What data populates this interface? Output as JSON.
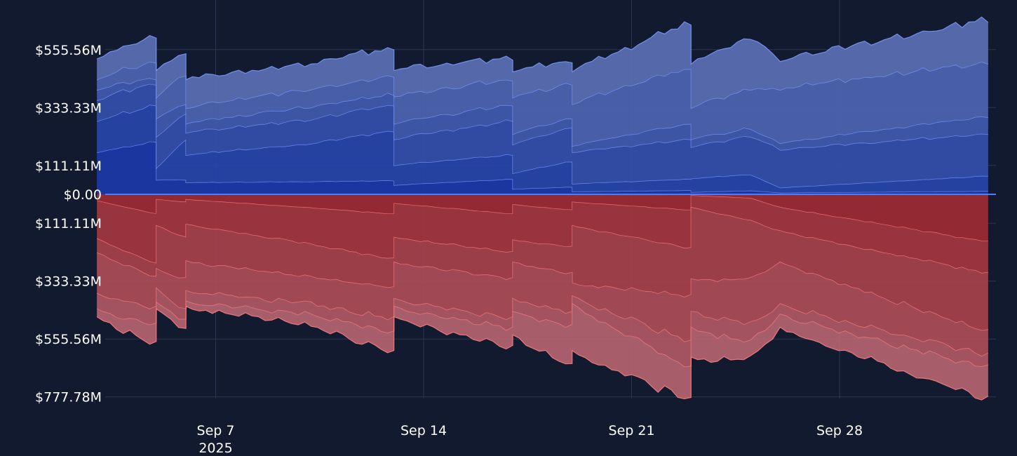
{
  "chart_data": {
    "type": "area",
    "title": "",
    "xlabel": "",
    "ylabel": "",
    "x_range": [
      "2025-09-03",
      "2025-10-03"
    ],
    "y_range": [
      -777.78,
      555.56
    ],
    "y_ticks": [
      {
        "value": 555.56,
        "label": "$555.56M"
      },
      {
        "value": 333.33,
        "label": "$333.33M"
      },
      {
        "value": 111.11,
        "label": "$111.11M"
      },
      {
        "value": 0,
        "label": "$0.00"
      },
      {
        "value": -111.11,
        "label": "$111.11M"
      },
      {
        "value": -333.33,
        "label": "$333.33M"
      },
      {
        "value": -555.56,
        "label": "$555.56M"
      },
      {
        "value": -777.78,
        "label": "$777.78M"
      }
    ],
    "x_ticks": [
      {
        "date": "2025-09-07",
        "label": "Sep 7",
        "sublabel": "2025"
      },
      {
        "date": "2025-09-14",
        "label": "Sep 14",
        "sublabel": ""
      },
      {
        "date": "2025-09-21",
        "label": "Sep 21",
        "sublabel": ""
      },
      {
        "date": "2025-09-28",
        "label": "Sep 28",
        "sublabel": ""
      }
    ],
    "grid": true,
    "legend": "none",
    "colors": {
      "background": "#111a2e",
      "grid": "#2a3754",
      "zero_line": "#4f7bff",
      "positive_fill_dark": "#1a3aa8",
      "positive_fill_light": "#5a6fb5",
      "positive_line": "#7d9bff",
      "negative_fill_dark": "#9e2a33",
      "negative_fill_light": "#b56470",
      "negative_line": "#ff8080"
    },
    "positive": {
      "x": [
        "2025-09-03",
        "2025-09-05",
        "2025-09-05",
        "2025-09-06",
        "2025-09-06",
        "2025-09-10",
        "2025-09-13",
        "2025-09-13",
        "2025-09-17",
        "2025-09-17",
        "2025-09-19",
        "2025-09-19",
        "2025-09-23",
        "2025-09-23",
        "2025-09-25",
        "2025-09-26",
        "2025-10-03"
      ],
      "bands": [
        [
          160,
          200,
          55,
          55,
          45,
          48,
          52,
          35,
          58,
          20,
          28,
          10,
          15,
          8,
          14,
          6,
          12
        ],
        [
          280,
          340,
          100,
          210,
          150,
          190,
          240,
          110,
          150,
          80,
          125,
          40,
          58,
          60,
          75,
          25,
          70
        ],
        [
          360,
          420,
          220,
          310,
          235,
          280,
          340,
          210,
          280,
          190,
          255,
          160,
          210,
          180,
          220,
          170,
          230
        ],
        [
          400,
          440,
          290,
          345,
          270,
          330,
          380,
          270,
          340,
          230,
          290,
          185,
          270,
          210,
          250,
          195,
          295
        ],
        [
          440,
          505,
          370,
          455,
          330,
          395,
          450,
          375,
          435,
          370,
          420,
          345,
          480,
          330,
          400,
          400,
          500
        ],
        [
          520,
          600,
          475,
          540,
          440,
          490,
          555,
          475,
          515,
          470,
          505,
          470,
          650,
          500,
          595,
          510,
          660
        ]
      ]
    },
    "negative": {
      "x": [
        "2025-09-03",
        "2025-09-05",
        "2025-09-05",
        "2025-09-06",
        "2025-09-06",
        "2025-09-10",
        "2025-09-13",
        "2025-09-13",
        "2025-09-17",
        "2025-09-17",
        "2025-09-19",
        "2025-09-19",
        "2025-09-23",
        "2025-09-23",
        "2025-09-25",
        "2025-09-26",
        "2025-10-03"
      ],
      "bands": [
        [
          -25,
          -75,
          -20,
          -30,
          -20,
          -50,
          -75,
          -35,
          -75,
          -40,
          -60,
          -30,
          -60,
          -5,
          -15,
          -50,
          -180
        ],
        [
          -170,
          -265,
          -120,
          -165,
          -115,
          -185,
          -245,
          -165,
          -220,
          -175,
          -200,
          -120,
          -205,
          -50,
          -100,
          -140,
          -300
        ],
        [
          -225,
          -315,
          -285,
          -320,
          -255,
          -310,
          -355,
          -260,
          -320,
          -260,
          -300,
          -340,
          -385,
          -325,
          -320,
          -260,
          -520
        ],
        [
          -380,
          -430,
          -360,
          -440,
          -370,
          -410,
          -470,
          -400,
          -470,
          -400,
          -450,
          -390,
          -560,
          -450,
          -490,
          -420,
          -610
        ],
        [
          -440,
          -495,
          -415,
          -480,
          -410,
          -450,
          -525,
          -430,
          -510,
          -450,
          -500,
          -420,
          -660,
          -510,
          -560,
          -460,
          -655
        ],
        [
          -470,
          -565,
          -440,
          -515,
          -430,
          -490,
          -600,
          -470,
          -580,
          -540,
          -650,
          -600,
          -780,
          -625,
          -620,
          -510,
          -775
        ]
      ]
    }
  }
}
